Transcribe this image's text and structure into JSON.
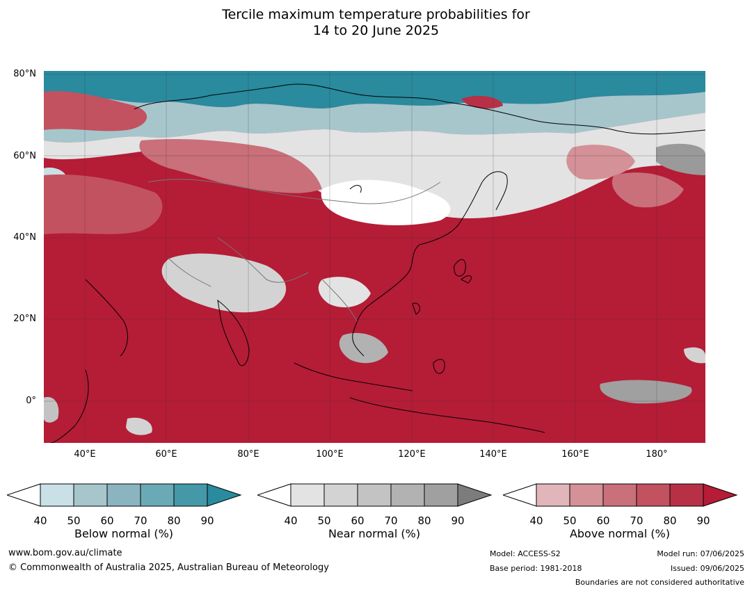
{
  "title": {
    "line1": "Tercile maximum temperature probabilities for",
    "line2": "14 to 20 June 2025"
  },
  "map": {
    "lat_labels": [
      "80°N",
      "60°N",
      "40°N",
      "20°N",
      "0°"
    ],
    "lon_labels": [
      "40°E",
      "60°E",
      "80°E",
      "100°E",
      "120°E",
      "140°E",
      "160°E",
      "180°"
    ],
    "extent": {
      "lon": [
        30,
        192
      ],
      "lat": [
        -10,
        81
      ]
    }
  },
  "legends": [
    {
      "name": "Below normal (%)",
      "ticks": [
        "40",
        "50",
        "60",
        "70",
        "80",
        "90"
      ],
      "colors": [
        "#ffffff",
        "#c8e0e6",
        "#a6c6cc",
        "#8ab4bf",
        "#6aaab6",
        "#4598a8",
        "#2a8a9e"
      ]
    },
    {
      "name": "Near normal (%)",
      "ticks": [
        "40",
        "50",
        "60",
        "70",
        "80",
        "90"
      ],
      "colors": [
        "#ffffff",
        "#e3e3e3",
        "#d3d3d3",
        "#c3c3c3",
        "#b2b2b2",
        "#a0a0a0",
        "#7c7c7c"
      ]
    },
    {
      "name": "Above normal (%)",
      "ticks": [
        "40",
        "50",
        "60",
        "70",
        "80",
        "90"
      ],
      "colors": [
        "#ffffff",
        "#e0b6bb",
        "#d49197",
        "#c9707a",
        "#c25260",
        "#b83046",
        "#b51c36"
      ]
    }
  ],
  "footer": {
    "website": "www.bom.gov.au/climate",
    "copyright": "© Commonwealth of Australia 2025, Australian Bureau of Meteorology",
    "model": "Model: ACCESS-S2",
    "base_period": "Base period: 1981-2018",
    "model_run": "Model run: 07/06/2025",
    "issued": "Issued: 09/06/2025",
    "disclaimer": "Boundaries are not considered authoritative"
  }
}
